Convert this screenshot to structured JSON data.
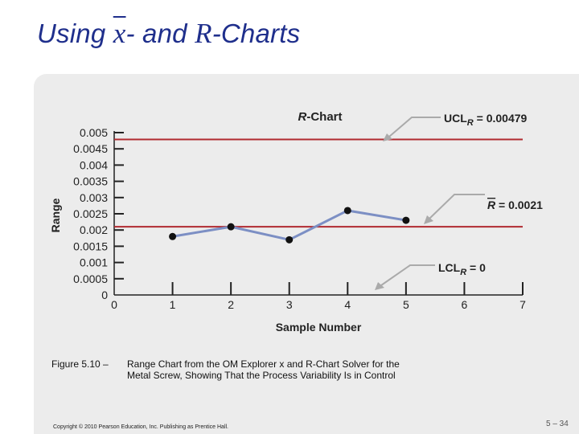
{
  "slide": {
    "title_prefix": "Using ",
    "title_x": "x",
    "title_mid": "- and ",
    "title_r": "R",
    "title_suffix": "-Charts",
    "caption_figure": "Figure 5.10 –",
    "caption_line1": "Range Chart from the OM Explorer x and R-Chart Solver for the",
    "caption_line2": "Metal Screw, Showing That the Process Variability Is in Control",
    "copyright": "Copyright © 2010 Pearson Education, Inc. Publishing as Prentice Hall.",
    "page_number": "5 – 34",
    "title_color": "#1f2f8c"
  },
  "chart_data": {
    "type": "line",
    "title": "R-Chart",
    "xlabel": "Sample Number",
    "ylabel": "Range",
    "x": [
      1,
      2,
      3,
      4,
      5
    ],
    "values": [
      0.0018,
      0.0021,
      0.0017,
      0.0026,
      0.0023
    ],
    "xlim": [
      0,
      7
    ],
    "ylim": [
      0,
      0.005
    ],
    "x_ticks": [
      "0",
      "1",
      "2",
      "3",
      "4",
      "5",
      "6",
      "7"
    ],
    "y_ticks": [
      "0.005",
      "0.0045",
      "0.004",
      "0.0035",
      "0.003",
      "0.0025",
      "0.002",
      "0.0015",
      "0.001",
      "0.0005",
      "0"
    ],
    "grid": false,
    "control_lines": [
      {
        "name": "UCL",
        "sub": "R",
        "value": 0.00479,
        "label": "UCLR = 0.00479"
      },
      {
        "name": "R",
        "sub": "",
        "value": 0.0021,
        "label": "R = 0.0021"
      },
      {
        "name": "LCL",
        "sub": "R",
        "value": 0,
        "label": "LCLR = 0"
      }
    ],
    "annotations": {
      "ucl_text": "UCL",
      "ucl_sub": "R",
      "ucl_value": " = 0.00479",
      "center_text": "R",
      "center_value": " = 0.0021",
      "lcl_text": "LCL",
      "lcl_sub": "R",
      "lcl_value": " = 0"
    },
    "colors": {
      "control_line": "#b02a30",
      "series_line": "#7c8fc4",
      "marker": "#111111",
      "arrow": "#aaaaaa"
    }
  }
}
